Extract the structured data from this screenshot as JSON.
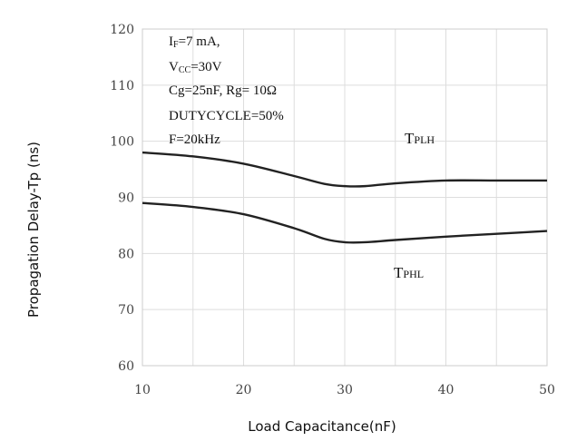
{
  "chart_data": {
    "type": "line",
    "xlabel": "Load Capacitance(nF)",
    "ylabel": "Propagation Delay-Tp (ns)",
    "xlim": [
      10,
      50
    ],
    "ylim": [
      60,
      120
    ],
    "xticks": [
      10,
      20,
      30,
      40,
      50
    ],
    "yticks": [
      60,
      70,
      80,
      90,
      100,
      110,
      120
    ],
    "grid": true,
    "annotations": [
      {
        "main": "I",
        "sub": "F",
        "rest": "=7 mA,"
      },
      {
        "main": "V",
        "sub": "CC",
        "rest": "=30V"
      },
      {
        "main": "Cg=25nF, Rg= 10Ω",
        "sub": "",
        "rest": ""
      },
      {
        "main": "DUTYCYCLE=50%",
        "sub": "",
        "rest": ""
      },
      {
        "main": "F=20kHz",
        "sub": "",
        "rest": ""
      }
    ],
    "series": [
      {
        "label_main": "T",
        "label_sub": "PLH",
        "x": [
          10,
          15,
          20,
          25,
          28,
          30,
          32,
          35,
          40,
          45,
          50
        ],
        "values": [
          98,
          97.3,
          96,
          93.8,
          92.4,
          92,
          92,
          92.5,
          93,
          93,
          93
        ]
      },
      {
        "label_main": "T",
        "label_sub": "PHL",
        "x": [
          10,
          15,
          20,
          25,
          28,
          30,
          32,
          35,
          40,
          45,
          50
        ],
        "values": [
          89,
          88.3,
          87,
          84.5,
          82.6,
          82,
          82,
          82.4,
          83,
          83.5,
          84
        ]
      }
    ],
    "line_color": "#222222",
    "grid_color": "#dddddd"
  }
}
